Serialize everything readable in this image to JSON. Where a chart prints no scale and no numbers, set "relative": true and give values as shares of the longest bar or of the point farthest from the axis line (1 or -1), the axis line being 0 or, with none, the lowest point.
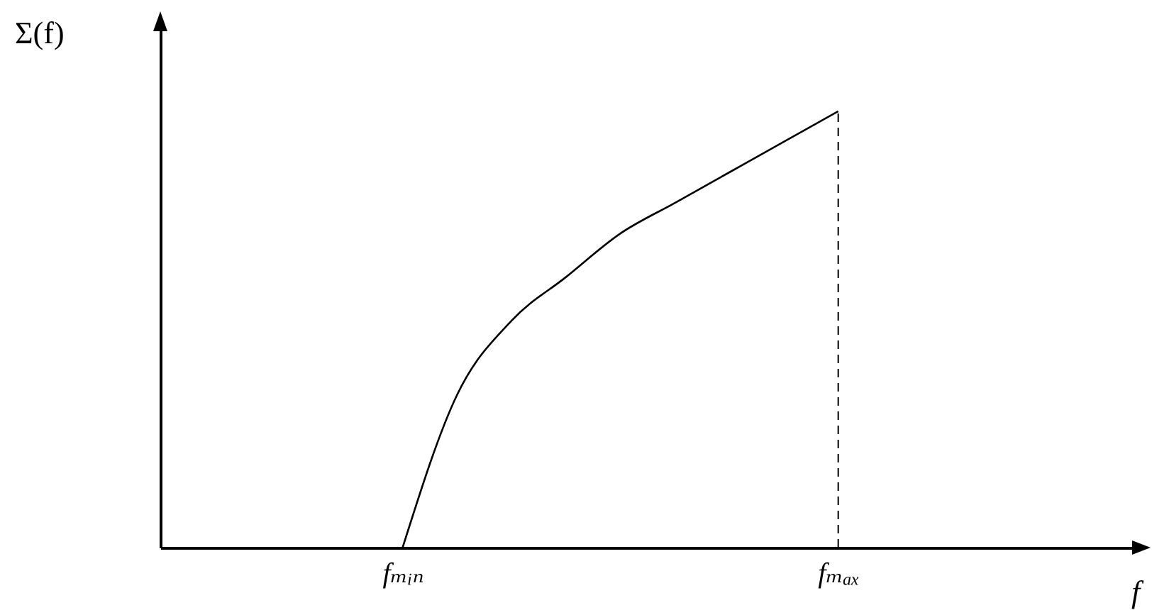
{
  "chart_data": {
    "type": "line",
    "relative": true,
    "xlabel": "f",
    "ylabel": "Σ(f)",
    "categories": [
      null,
      null,
      null,
      null,
      "fₘᵢₙ",
      null,
      null,
      null,
      null,
      null,
      null,
      null,
      "fₘₐₓ",
      null,
      null,
      null,
      null,
      null
    ],
    "series": [
      {
        "color": "#000000",
        "values": [
          null,
          null,
          null,
          null,
          0,
          0.35,
          0.52,
          0.62,
          0.72,
          0.79,
          0.86,
          0.93,
          1,
          null,
          null,
          null,
          null,
          null
        ]
      }
    ],
    "ref_lines": [
      {
        "axis": "x",
        "value": "fₘₐₓ",
        "line_style": "dashed",
        "color": "#000000"
      }
    ],
    "grid": false,
    "marker": "none",
    "line_style": "solid"
  }
}
